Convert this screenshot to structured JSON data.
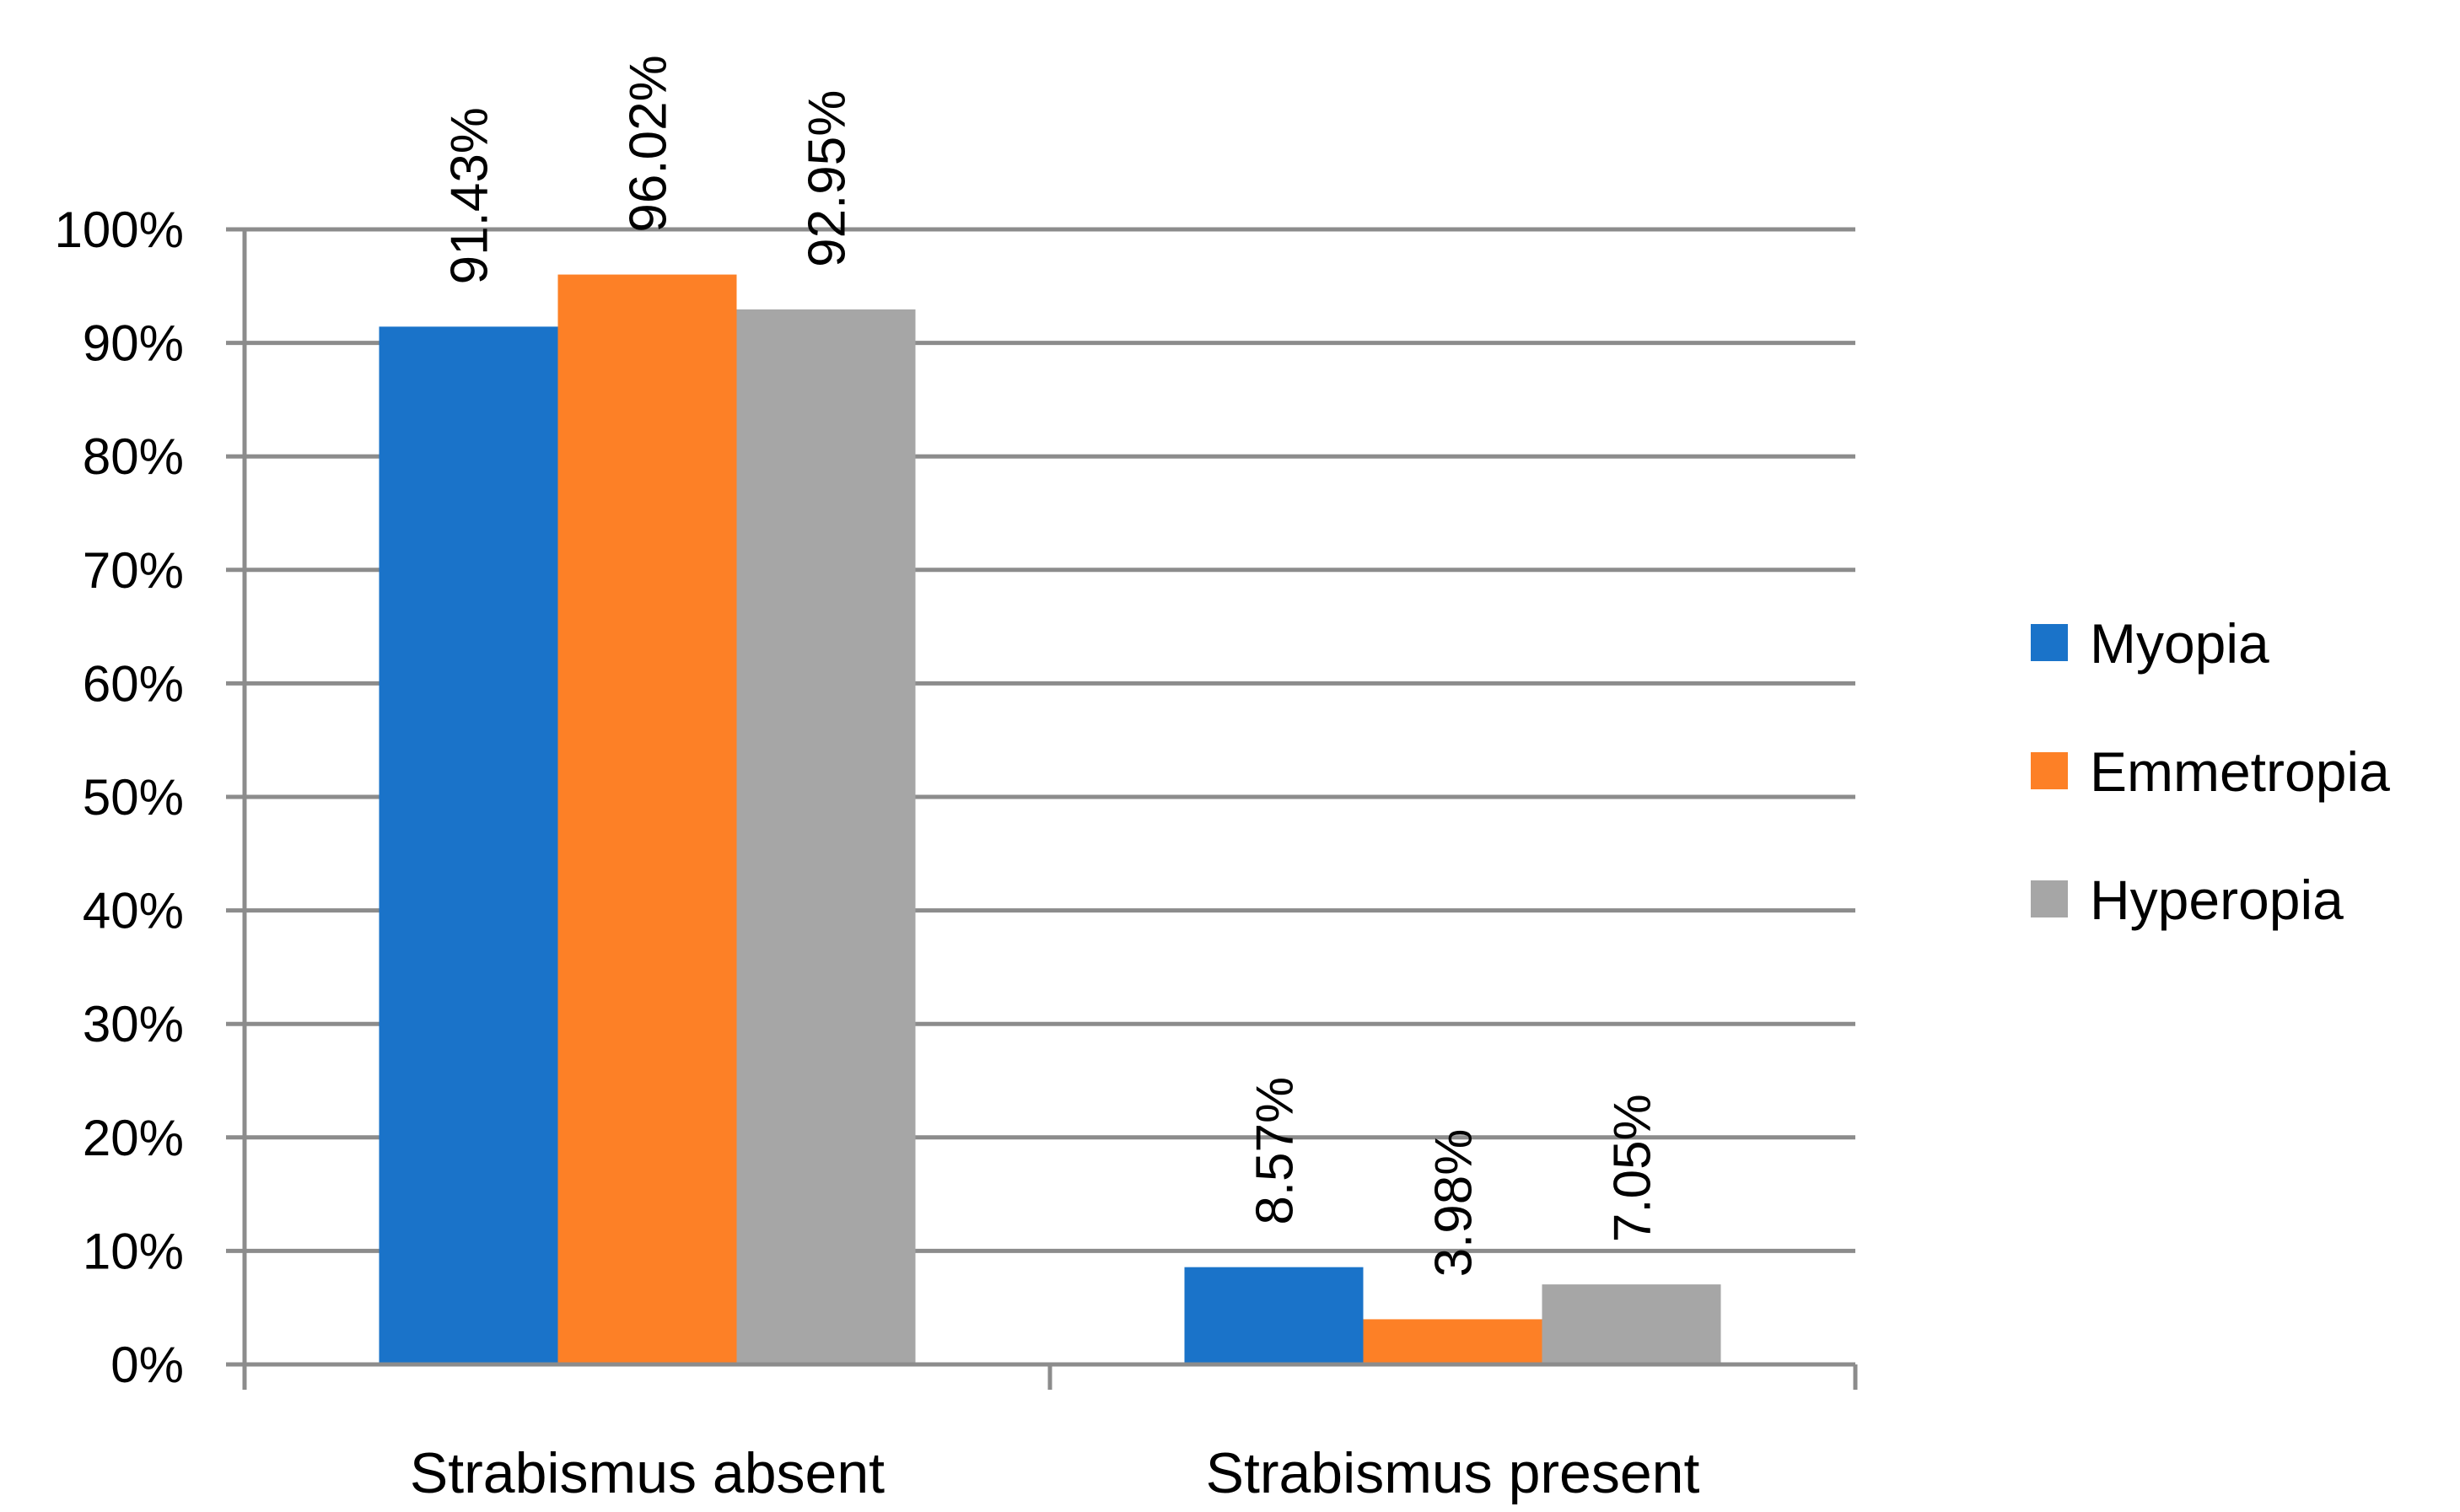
{
  "chart_data": {
    "type": "bar",
    "categories": [
      "Strabismus absent",
      "Strabismus present"
    ],
    "series": [
      {
        "name": "Myopia",
        "color": "#1a73c9",
        "values": [
          91.43,
          8.57
        ],
        "labels": [
          "91.43%",
          "8.57%"
        ]
      },
      {
        "name": "Emmetropia",
        "color": "#fd8026",
        "values": [
          96.02,
          3.98
        ],
        "labels": [
          "96.02%",
          "3.98%"
        ]
      },
      {
        "name": "Hyperopia",
        "color": "#a6a6a6",
        "values": [
          92.95,
          7.05
        ],
        "labels": [
          "92.95%",
          "7.05%"
        ]
      }
    ],
    "yticks": [
      0,
      10,
      20,
      30,
      40,
      50,
      60,
      70,
      80,
      90,
      100
    ],
    "ytick_labels": [
      "0%",
      "10%",
      "20%",
      "30%",
      "40%",
      "50%",
      "60%",
      "70%",
      "80%",
      "90%",
      "100%"
    ],
    "ylim": [
      0,
      100
    ],
    "grid": true,
    "legend_position": "right",
    "gridline_color": "#8c8c8c",
    "axis_color": "#8c8c8c"
  }
}
